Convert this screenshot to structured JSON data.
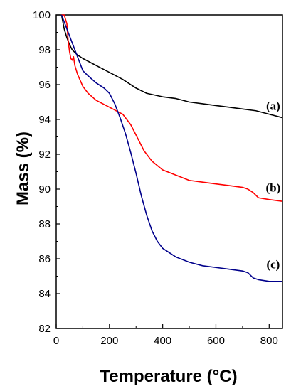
{
  "chart_data": {
    "type": "line",
    "title": "",
    "xlabel": "Temperature (°C)",
    "ylabel": "Mass (%)",
    "xlim": [
      0,
      850
    ],
    "ylim": [
      82,
      100
    ],
    "xticks": [
      0,
      200,
      400,
      600,
      800
    ],
    "xtick_labels": [
      "0",
      "200",
      "400",
      "600",
      "800"
    ],
    "yticks": [
      82,
      84,
      86,
      88,
      90,
      92,
      94,
      96,
      98,
      100
    ],
    "ytick_labels": [
      "82",
      "84",
      "86",
      "88",
      "90",
      "92",
      "94",
      "96",
      "98",
      "100"
    ],
    "grid": false,
    "legend": "none",
    "series": [
      {
        "name": "(a)",
        "color": "#000000",
        "x": [
          20,
          25,
          30,
          40,
          50,
          60,
          80,
          100,
          150,
          200,
          250,
          300,
          340,
          400,
          450,
          500,
          550,
          600,
          650,
          700,
          750,
          800,
          850
        ],
        "y": [
          100.0,
          99.6,
          99.2,
          98.7,
          98.3,
          98.0,
          97.7,
          97.5,
          97.1,
          96.7,
          96.3,
          95.8,
          95.5,
          95.3,
          95.2,
          95.0,
          94.9,
          94.8,
          94.7,
          94.6,
          94.5,
          94.3,
          94.1
        ]
      },
      {
        "name": "(b)",
        "color": "#ff0000",
        "x": [
          20,
          30,
          40,
          45,
          50,
          55,
          60,
          65,
          70,
          80,
          100,
          120,
          150,
          200,
          250,
          280,
          300,
          330,
          360,
          400,
          450,
          500,
          550,
          600,
          650,
          700,
          720,
          740,
          760,
          800,
          850
        ],
        "y": [
          100.0,
          100.0,
          99.5,
          98.5,
          97.9,
          97.5,
          97.4,
          97.6,
          97.1,
          96.6,
          95.9,
          95.5,
          95.1,
          94.7,
          94.3,
          93.7,
          93.1,
          92.2,
          91.6,
          91.1,
          90.8,
          90.5,
          90.4,
          90.3,
          90.2,
          90.1,
          90.0,
          89.8,
          89.5,
          89.4,
          89.3
        ]
      },
      {
        "name": "(c)",
        "color": "#00008b",
        "x": [
          20,
          30,
          40,
          50,
          60,
          80,
          100,
          120,
          150,
          180,
          200,
          220,
          240,
          260,
          280,
          300,
          320,
          340,
          360,
          380,
          400,
          450,
          500,
          550,
          600,
          650,
          700,
          720,
          740,
          760,
          800,
          850
        ],
        "y": [
          100.0,
          99.6,
          99.2,
          98.8,
          98.4,
          97.6,
          96.8,
          96.5,
          96.1,
          95.8,
          95.5,
          94.9,
          94.1,
          93.2,
          92.1,
          90.9,
          89.6,
          88.5,
          87.6,
          87.0,
          86.6,
          86.1,
          85.8,
          85.6,
          85.5,
          85.4,
          85.3,
          85.2,
          84.9,
          84.8,
          84.7,
          84.7
        ]
      }
    ],
    "annotations": [
      {
        "text": "(a)",
        "x": 815,
        "y": 94.8
      },
      {
        "text": "(b)",
        "x": 815,
        "y": 90.1
      },
      {
        "text": "(c)",
        "x": 815,
        "y": 85.7
      }
    ]
  }
}
